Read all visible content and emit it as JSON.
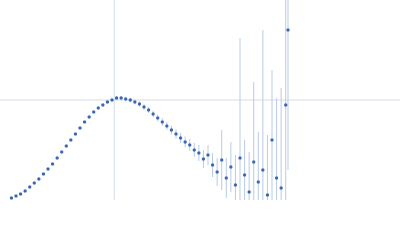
{
  "chart_data": {
    "type": "scatter",
    "x": [
      0.1,
      0.14,
      0.18,
      0.22,
      0.26,
      0.3,
      0.34,
      0.38,
      0.42,
      0.46,
      0.5,
      0.54,
      0.58,
      0.62,
      0.66,
      0.7,
      0.74,
      0.78,
      0.82,
      0.86,
      0.9,
      0.94,
      0.98,
      1.02,
      1.06,
      1.1,
      1.14,
      1.18,
      1.22,
      1.26,
      1.3,
      1.34,
      1.38,
      1.42,
      1.46,
      1.5,
      1.54,
      1.58,
      1.62,
      1.66,
      1.7,
      1.74,
      1.78,
      1.82,
      1.86,
      1.9,
      1.94,
      1.98,
      2.02,
      2.06,
      2.1,
      2.14,
      2.18,
      2.22,
      2.26,
      2.3,
      2.34,
      2.38,
      2.42,
      2.46,
      2.5,
      2.52
    ],
    "series": [
      {
        "color": "#3a66b8",
        "error_color": "#b9cbe8",
        "values": [
          0.02,
          0.04,
          0.06,
          0.09,
          0.13,
          0.17,
          0.21,
          0.26,
          0.31,
          0.36,
          0.42,
          0.48,
          0.54,
          0.6,
          0.66,
          0.72,
          0.78,
          0.83,
          0.88,
          0.92,
          0.95,
          0.98,
          1.0,
          1.02,
          1.02,
          1.01,
          1.0,
          0.98,
          0.96,
          0.93,
          0.9,
          0.86,
          0.82,
          0.78,
          0.74,
          0.7,
          0.66,
          0.62,
          0.58,
          0.55,
          0.5,
          0.47,
          0.41,
          0.45,
          0.35,
          0.28,
          0.4,
          0.22,
          0.33,
          0.15,
          0.42,
          0.25,
          0.08,
          0.38,
          0.18,
          0.3,
          0.05,
          0.6,
          0.22,
          0.12,
          0.95,
          1.7
        ],
        "errors": [
          0.005,
          0.005,
          0.005,
          0.006,
          0.006,
          0.007,
          0.007,
          0.008,
          0.008,
          0.009,
          0.009,
          0.01,
          0.01,
          0.011,
          0.012,
          0.012,
          0.013,
          0.014,
          0.015,
          0.016,
          0.017,
          0.018,
          0.019,
          0.02,
          0.021,
          0.022,
          0.023,
          0.024,
          0.026,
          0.028,
          0.03,
          0.032,
          0.034,
          0.037,
          0.04,
          0.043,
          0.047,
          0.05,
          0.055,
          0.06,
          0.07,
          0.08,
          0.09,
          0.1,
          0.12,
          0.14,
          0.3,
          0.2,
          0.25,
          0.3,
          1.2,
          0.35,
          0.4,
          0.8,
          0.5,
          1.4,
          0.6,
          0.7,
          0.8,
          1.0,
          1.2,
          1.4
        ]
      }
    ],
    "xlim": [
      0,
      3.5
    ],
    "ylim": [
      0,
      2
    ],
    "xticks": [
      1
    ],
    "yticks": [
      1
    ],
    "grid": true,
    "tick_labels": false
  }
}
